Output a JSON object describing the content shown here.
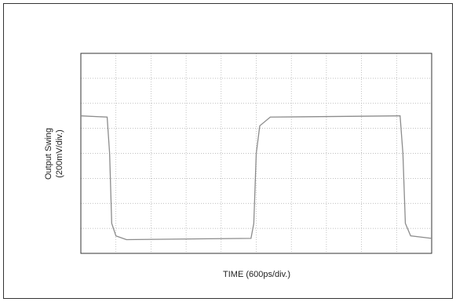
{
  "chart_data": {
    "type": "line",
    "y_label": [
      "Output Swing",
      "(200mV/div.)"
    ],
    "x_label": "TIME (600ps/div.)",
    "x": [
      0,
      0.75,
      0.82,
      0.88,
      1.0,
      1.3,
      4.85,
      4.93,
      5.0,
      5.1,
      5.4,
      9.1,
      9.18,
      9.25,
      9.4,
      10
    ],
    "series": [
      {
        "color": "#8c8c8c",
        "values": [
          5.5,
          5.45,
          4,
          1.2,
          0.7,
          0.55,
          0.6,
          1.2,
          4,
          5.1,
          5.45,
          5.5,
          4,
          1.2,
          0.7,
          0.6
        ]
      }
    ],
    "xlim": [
      0,
      10
    ],
    "ylim": [
      0,
      8
    ],
    "xticks": [
      0,
      1,
      2,
      3,
      4,
      5,
      6,
      7,
      8,
      9,
      10
    ],
    "yticks": [
      0,
      1,
      2,
      3,
      4,
      5,
      6,
      7,
      8
    ],
    "grid": true
  }
}
